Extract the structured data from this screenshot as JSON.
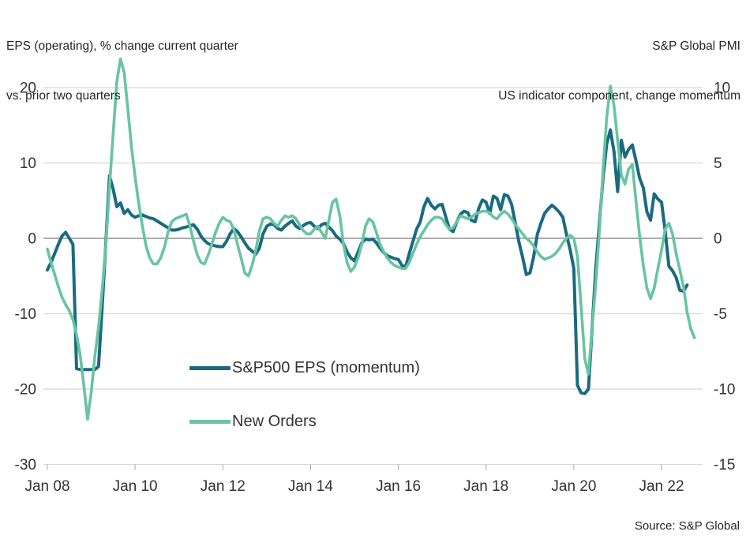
{
  "header": {
    "left_title_line1": "EPS (operating), % change current quarter",
    "left_title_line2": "vs. prior two quarters",
    "right_title_line1": "S&P Global PMI",
    "right_title_line2": "US indicator component, change momentum"
  },
  "source": "Source: S&P Global",
  "legend": [
    {
      "label": "S&P500 EPS (momentum)",
      "color": "#1a6a80"
    },
    {
      "label": "New Orders",
      "color": "#68c4a2"
    }
  ],
  "colors": {
    "eps_line": "#1a6a80",
    "new_orders_line": "#68c4a2",
    "gridline": "#d8d8d8",
    "zero_line": "#7a7a7a",
    "axis_text": "#333333",
    "title_text": "#262626",
    "background": "#ffffff"
  },
  "chart_data": {
    "type": "line",
    "title_left": "EPS (operating), % change current quarter vs. prior two quarters",
    "title_right": "S&P Global PMI — US indicator component, change momentum",
    "frequency": "monthly",
    "x_start": "Jan 2008",
    "x_end_eps": "Aug 2022",
    "x_end_new_orders": "Oct 2022",
    "x_tick_labels": [
      "Jan 08",
      "Jan 10",
      "Jan 12",
      "Jan 14",
      "Jan 16",
      "Jan 18",
      "Jan 20",
      "Jan 22"
    ],
    "grid": true,
    "legend_position": "inside-lower-center-left",
    "left_axis": {
      "ticks": [
        20,
        10,
        0,
        -10,
        -20,
        -30
      ],
      "range": [
        -30,
        25
      ],
      "series": "S&P500 EPS (momentum)"
    },
    "right_axis": {
      "ticks": [
        10,
        5,
        0,
        -5,
        -10,
        -15
      ],
      "range": [
        -15,
        12.5
      ],
      "series": "New Orders"
    },
    "series": [
      {
        "name": "S&P500 EPS (momentum)",
        "axis": "left",
        "color": "#1a6a80",
        "values": [
          -4.2,
          -3.2,
          -2.0,
          -0.8,
          0.3,
          0.8,
          0.0,
          -0.8,
          -17.3,
          -17.4,
          -17.4,
          -17.4,
          -17.4,
          -17.4,
          -17.0,
          -9.0,
          -0.5,
          8.3,
          6.5,
          4.2,
          4.7,
          3.3,
          3.8,
          3.1,
          2.8,
          3.0,
          3.1,
          2.9,
          2.7,
          2.6,
          2.3,
          2.0,
          1.7,
          1.4,
          1.1,
          1.1,
          1.2,
          1.4,
          1.5,
          1.7,
          1.8,
          1.2,
          0.3,
          -0.3,
          -0.7,
          -0.9,
          -1.0,
          -1.1,
          -1.1,
          -0.4,
          0.6,
          1.3,
          0.9,
          0.2,
          -0.6,
          -1.3,
          -1.7,
          -2.1,
          -1.3,
          0.6,
          1.6,
          1.9,
          1.8,
          1.3,
          1.1,
          1.6,
          2.0,
          2.3,
          1.6,
          1.3,
          1.7,
          2.0,
          2.1,
          1.6,
          1.3,
          1.8,
          2.0,
          1.5,
          1.0,
          0.3,
          -0.1,
          -0.7,
          -1.8,
          -2.6,
          -3.0,
          -1.8,
          -0.6,
          -0.1,
          -0.2,
          -0.1,
          -0.6,
          -1.3,
          -1.9,
          -2.3,
          -2.5,
          -2.7,
          -2.8,
          -3.6,
          -3.8,
          -2.0,
          -0.4,
          1.2,
          2.2,
          4.2,
          5.3,
          4.4,
          3.9,
          4.4,
          4.5,
          2.8,
          1.2,
          0.9,
          2.2,
          3.2,
          3.6,
          3.4,
          2.4,
          2.2,
          4.0,
          5.1,
          4.8,
          3.3,
          5.6,
          5.3,
          3.8,
          5.8,
          5.6,
          4.5,
          2.0,
          -0.5,
          -2.5,
          -4.8,
          -4.6,
          -2.5,
          0.5,
          2.0,
          3.3,
          3.9,
          4.4,
          4.0,
          3.5,
          2.8,
          0.5,
          -1.5,
          -4.0,
          -19.5,
          -20.5,
          -20.6,
          -20.0,
          -12.0,
          -4.0,
          2.0,
          8.0,
          12.5,
          14.4,
          11.5,
          6.2,
          13.0,
          10.8,
          11.8,
          12.4,
          10.3,
          8.0,
          6.7,
          3.5,
          2.4,
          5.9,
          5.2,
          4.8,
          1.0,
          -3.7,
          -4.3,
          -5.2,
          -6.9,
          -7.0,
          -6.2
        ]
      },
      {
        "name": "New Orders",
        "axis": "right",
        "color": "#68c4a2",
        "values": [
          -0.7,
          -1.6,
          -2.4,
          -3.2,
          -3.9,
          -4.4,
          -4.8,
          -5.4,
          -6.4,
          -7.8,
          -9.8,
          -12.0,
          -10.2,
          -7.8,
          -5.9,
          -3.4,
          -0.4,
          3.4,
          7.0,
          10.4,
          11.9,
          11.0,
          8.6,
          6.1,
          4.1,
          2.3,
          0.8,
          -0.5,
          -1.3,
          -1.7,
          -1.7,
          -1.3,
          -0.6,
          0.4,
          1.1,
          1.3,
          1.4,
          1.5,
          1.6,
          0.8,
          -0.2,
          -1.1,
          -1.6,
          -1.7,
          -1.1,
          -0.4,
          0.4,
          1.0,
          1.4,
          1.2,
          1.1,
          0.6,
          -0.4,
          -1.3,
          -2.3,
          -2.5,
          -1.8,
          -0.8,
          0.5,
          1.3,
          1.4,
          1.3,
          1.0,
          0.8,
          1.2,
          1.5,
          1.4,
          1.5,
          1.3,
          0.9,
          0.5,
          0.3,
          0.3,
          0.6,
          0.8,
          0.4,
          0.0,
          1.2,
          2.4,
          2.6,
          1.5,
          -0.4,
          -1.6,
          -2.2,
          -1.9,
          -1.3,
          -0.4,
          0.8,
          1.3,
          1.1,
          0.4,
          -0.4,
          -0.9,
          -1.3,
          -1.6,
          -1.8,
          -1.9,
          -2.0,
          -2.0,
          -1.6,
          -1.0,
          -0.4,
          0.1,
          0.5,
          0.9,
          1.2,
          1.4,
          1.4,
          1.3,
          0.9,
          0.6,
          0.7,
          1.1,
          1.5,
          1.4,
          1.3,
          1.4,
          1.6,
          1.7,
          1.8,
          1.8,
          1.7,
          1.4,
          1.3,
          1.6,
          1.8,
          1.6,
          1.3,
          0.9,
          0.6,
          0.3,
          0.0,
          -0.2,
          -0.5,
          -0.9,
          -1.2,
          -1.4,
          -1.3,
          -1.2,
          -1.0,
          -0.7,
          -0.3,
          0.0,
          0.2,
          0.0,
          -1.2,
          -4.5,
          -8.0,
          -9.0,
          -6.0,
          -3.0,
          0.5,
          4.5,
          8.0,
          10.1,
          8.8,
          6.5,
          4.2,
          3.6,
          4.6,
          4.9,
          2.5,
          0.2,
          -1.8,
          -3.3,
          -4.0,
          -3.3,
          -2.0,
          -0.8,
          0.6,
          1.0,
          0.3,
          -1.0,
          -2.1,
          -3.2,
          -4.9,
          -6.0,
          -6.6
        ]
      }
    ]
  }
}
